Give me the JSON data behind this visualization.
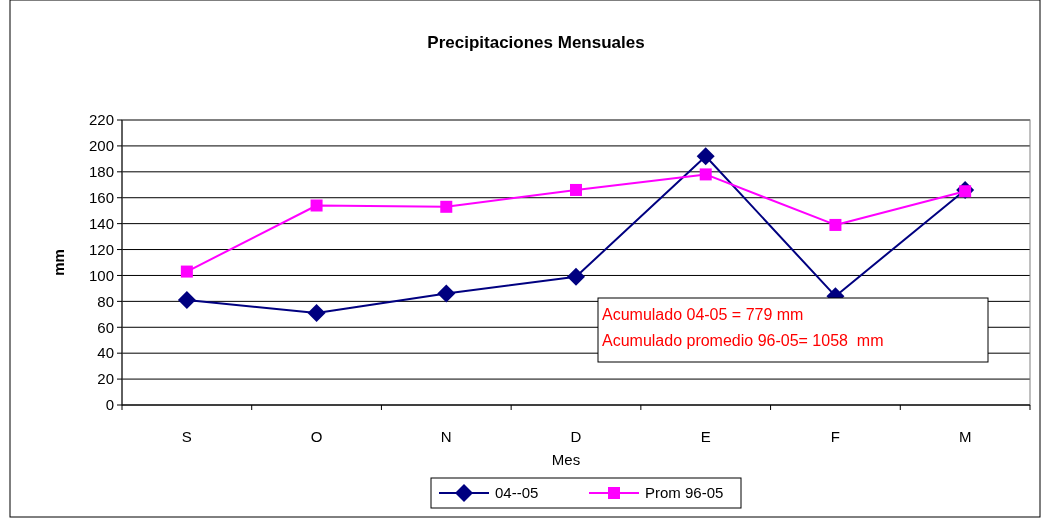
{
  "chart_data": {
    "type": "line",
    "title": "Precipitaciones Mensuales",
    "xlabel": "Mes",
    "ylabel": "mm",
    "categories": [
      "S",
      "O",
      "N",
      "D",
      "E",
      "F",
      "M"
    ],
    "series": [
      {
        "name": "04--05",
        "color": "#000080",
        "values": [
          81,
          71,
          86,
          99,
          192,
          84,
          166
        ],
        "marker": "diamond"
      },
      {
        "name": "Prom 96-05",
        "color": "#ff00ff",
        "values": [
          103,
          154,
          153,
          166,
          178,
          139,
          165
        ],
        "marker": "square"
      }
    ],
    "ylim": [
      0,
      220
    ],
    "yticks": [
      0,
      20,
      40,
      60,
      80,
      100,
      120,
      140,
      160,
      180,
      200,
      220
    ],
    "grid": "y",
    "legend": "bottom",
    "annotations": [
      "Acumulado 04-05 = 779 mm",
      "Acumulado promedio 96-05= 1058  mm"
    ]
  }
}
